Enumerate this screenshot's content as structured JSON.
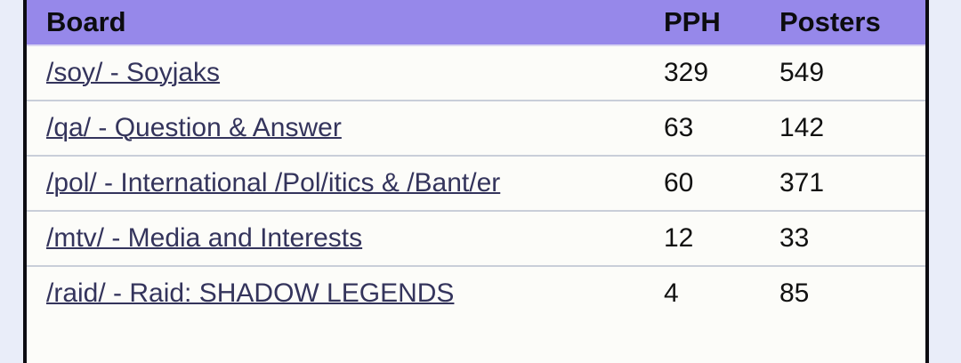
{
  "colors": {
    "page_bg": "#e9edf9",
    "header_bg": "#9688ea",
    "row_bg": "#fcfcf9",
    "link_color": "#34345c",
    "frame_border": "#0c0c12"
  },
  "table": {
    "columns": [
      {
        "label": "Board"
      },
      {
        "label": "PPH"
      },
      {
        "label": "Posters"
      }
    ],
    "rows": [
      {
        "board": "/soy/ - Soyjaks",
        "pph": "329",
        "posters": "549"
      },
      {
        "board": "/qa/ - Question & Answer",
        "pph": "63",
        "posters": "142"
      },
      {
        "board": "/pol/ - International /Pol/itics & /Bant/er",
        "pph": "60",
        "posters": "371"
      },
      {
        "board": "/mtv/ - Media and Interests",
        "pph": "12",
        "posters": "33"
      },
      {
        "board": "/raid/ - Raid: SHADOW LEGENDS",
        "pph": "4",
        "posters": "85"
      }
    ]
  }
}
